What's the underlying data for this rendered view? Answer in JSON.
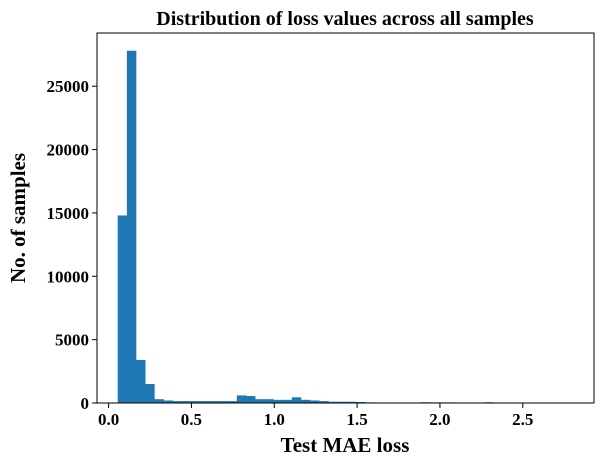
{
  "chart_data": {
    "type": "histogram",
    "title": "Distribution of loss values across all samples",
    "xlabel": "Test MAE loss",
    "ylabel": "No. of samples",
    "xlim": [
      -0.07,
      2.93
    ],
    "ylim": [
      0,
      29200
    ],
    "x_ticks": [
      0.0,
      0.5,
      1.0,
      1.5,
      2.0,
      2.5
    ],
    "x_tick_labels": [
      "0.0",
      "0.5",
      "1.0",
      "1.5",
      "2.0",
      "2.5"
    ],
    "y_ticks": [
      0,
      5000,
      10000,
      15000,
      20000,
      25000
    ],
    "y_tick_labels": [
      "0",
      "5000",
      "10000",
      "15000",
      "20000",
      "25000"
    ],
    "bar_color": "#1f77b4",
    "bin_start": 0.055,
    "bin_width": 0.0553,
    "counts": [
      14800,
      27800,
      3400,
      1500,
      300,
      200,
      150,
      150,
      150,
      150,
      150,
      150,
      150,
      600,
      550,
      300,
      300,
      250,
      250,
      450,
      250,
      200,
      150,
      100,
      100,
      100,
      80,
      50,
      30,
      30,
      30,
      30,
      40,
      60,
      50,
      50,
      50,
      30,
      20,
      30,
      60,
      20,
      20,
      20,
      20,
      40,
      40,
      40,
      40,
      40
    ]
  }
}
